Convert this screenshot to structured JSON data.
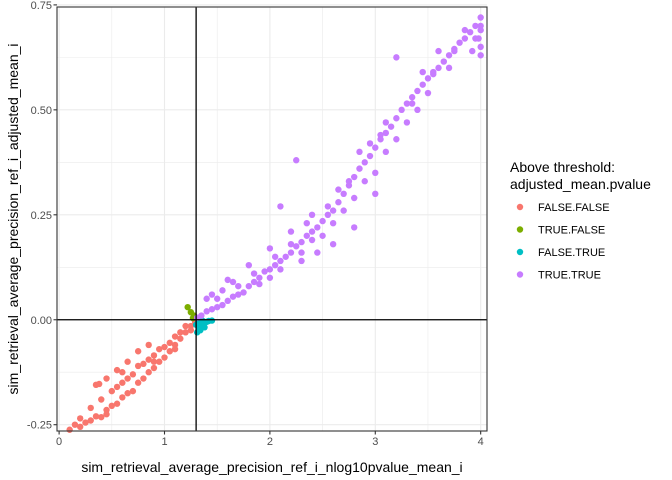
{
  "chart_data": {
    "type": "scatter",
    "xlabel": "sim_retrieval_average_precision_ref_i_nlog10pvalue_mean_i",
    "ylabel": "sim_retrieval_average_precision_ref_i_adjusted_mean_i",
    "xlim": [
      -0.02,
      4.06
    ],
    "ylim": [
      -0.265,
      0.745
    ],
    "x_ticks": [
      0,
      1,
      2,
      3,
      4
    ],
    "x_tick_labels": [
      "0",
      "1",
      "2",
      "3",
      "4"
    ],
    "y_ticks": [
      -0.25,
      0,
      0.25,
      0.5,
      0.75
    ],
    "y_tick_labels": [
      "-0.25",
      "0.00",
      "0.25",
      "0.50",
      "0.75"
    ],
    "grid": true,
    "reference_lines": {
      "vline_x": 1.3,
      "hline_y": 0
    },
    "legend": {
      "title_lines": [
        "Above threshold:",
        "adjusted_mean.pvalue"
      ],
      "placement": "right",
      "entries": [
        {
          "label": "FALSE.FALSE",
          "color": "#F8766D"
        },
        {
          "label": "TRUE.FALSE",
          "color": "#7CAE00"
        },
        {
          "label": "FALSE.TRUE",
          "color": "#00BFC4"
        },
        {
          "label": "TRUE.TRUE",
          "color": "#C77CFF"
        }
      ]
    },
    "series": [
      {
        "name": "FALSE.FALSE",
        "color": "#F8766D",
        "points": [
          [
            0.1,
            -0.262
          ],
          [
            0.15,
            -0.25
          ],
          [
            0.2,
            -0.255
          ],
          [
            0.25,
            -0.245
          ],
          [
            0.3,
            -0.24
          ],
          [
            0.35,
            -0.23
          ],
          [
            0.4,
            -0.232
          ],
          [
            0.45,
            -0.215
          ],
          [
            0.5,
            -0.205
          ],
          [
            0.55,
            -0.2
          ],
          [
            0.6,
            -0.185
          ],
          [
            0.65,
            -0.175
          ],
          [
            0.7,
            -0.17
          ],
          [
            0.75,
            -0.15
          ],
          [
            0.8,
            -0.14
          ],
          [
            0.85,
            -0.125
          ],
          [
            0.9,
            -0.115
          ],
          [
            0.95,
            -0.1
          ],
          [
            1.0,
            -0.09
          ],
          [
            1.05,
            -0.075
          ],
          [
            1.1,
            -0.06
          ],
          [
            1.15,
            -0.045
          ],
          [
            1.2,
            -0.03
          ],
          [
            1.25,
            -0.015
          ],
          [
            1.29,
            -0.005
          ],
          [
            0.5,
            -0.17
          ],
          [
            0.6,
            -0.15
          ],
          [
            0.7,
            -0.13
          ],
          [
            0.8,
            -0.105
          ],
          [
            0.9,
            -0.085
          ],
          [
            1.0,
            -0.065
          ],
          [
            1.1,
            -0.04
          ],
          [
            1.2,
            -0.015
          ],
          [
            0.35,
            -0.155
          ],
          [
            0.45,
            -0.14
          ],
          [
            0.55,
            -0.12
          ],
          [
            0.65,
            -0.1
          ],
          [
            0.75,
            -0.075
          ],
          [
            0.85,
            -0.06
          ],
          [
            0.4,
            -0.19
          ],
          [
            0.3,
            -0.21
          ],
          [
            0.6,
            -0.125
          ],
          [
            0.75,
            -0.11
          ],
          [
            0.95,
            -0.07
          ],
          [
            1.05,
            -0.055
          ],
          [
            1.15,
            -0.03
          ],
          [
            0.38,
            -0.153
          ],
          [
            0.55,
            -0.16
          ],
          [
            0.85,
            -0.095
          ],
          [
            1.25,
            -0.025
          ],
          [
            0.2,
            -0.235
          ],
          [
            0.65,
            -0.14
          ],
          [
            0.9,
            -0.1
          ],
          [
            1.1,
            -0.07
          ],
          [
            0.45,
            -0.225
          ]
        ]
      },
      {
        "name": "TRUE.FALSE",
        "color": "#7CAE00",
        "points": [
          [
            1.22,
            0.03
          ],
          [
            1.25,
            0.018
          ],
          [
            1.28,
            0.01
          ],
          [
            1.27,
            0.004
          ]
        ]
      },
      {
        "name": "FALSE.TRUE",
        "color": "#00BFC4",
        "points": [
          [
            1.31,
            -0.03
          ],
          [
            1.33,
            -0.02
          ],
          [
            1.35,
            -0.015
          ],
          [
            1.37,
            -0.01
          ],
          [
            1.4,
            -0.005
          ],
          [
            1.42,
            -0.003
          ],
          [
            1.45,
            -0.002
          ],
          [
            1.34,
            -0.025
          ],
          [
            1.38,
            -0.018
          ],
          [
            1.32,
            -0.005
          ],
          [
            1.36,
            -0.002
          ],
          [
            1.3,
            -0.012
          ]
        ]
      },
      {
        "name": "TRUE.TRUE",
        "color": "#C77CFF",
        "points": [
          [
            1.31,
            0.005
          ],
          [
            1.35,
            0.01
          ],
          [
            1.4,
            0.02
          ],
          [
            1.45,
            0.025
          ],
          [
            1.5,
            0.03
          ],
          [
            1.55,
            0.035
          ],
          [
            1.6,
            0.045
          ],
          [
            1.65,
            0.055
          ],
          [
            1.7,
            0.06
          ],
          [
            1.75,
            0.065
          ],
          [
            1.8,
            0.08
          ],
          [
            1.85,
            0.09
          ],
          [
            1.9,
            0.1
          ],
          [
            1.95,
            0.115
          ],
          [
            2.0,
            0.12
          ],
          [
            2.05,
            0.13
          ],
          [
            2.1,
            0.14
          ],
          [
            2.15,
            0.15
          ],
          [
            2.2,
            0.16
          ],
          [
            2.25,
            0.175
          ],
          [
            2.3,
            0.185
          ],
          [
            2.35,
            0.2
          ],
          [
            2.4,
            0.21
          ],
          [
            2.45,
            0.22
          ],
          [
            2.5,
            0.235
          ],
          [
            2.55,
            0.25
          ],
          [
            2.6,
            0.26
          ],
          [
            2.65,
            0.28
          ],
          [
            2.7,
            0.3
          ],
          [
            2.75,
            0.32
          ],
          [
            2.8,
            0.34
          ],
          [
            2.85,
            0.36
          ],
          [
            2.9,
            0.375
          ],
          [
            2.95,
            0.39
          ],
          [
            3.0,
            0.41
          ],
          [
            3.05,
            0.43
          ],
          [
            3.1,
            0.445
          ],
          [
            3.15,
            0.46
          ],
          [
            3.2,
            0.48
          ],
          [
            3.25,
            0.5
          ],
          [
            3.3,
            0.515
          ],
          [
            3.35,
            0.53
          ],
          [
            3.4,
            0.545
          ],
          [
            3.45,
            0.56
          ],
          [
            3.5,
            0.575
          ],
          [
            3.55,
            0.59
          ],
          [
            3.6,
            0.6
          ],
          [
            3.65,
            0.615
          ],
          [
            3.7,
            0.63
          ],
          [
            3.75,
            0.645
          ],
          [
            3.8,
            0.66
          ],
          [
            3.85,
            0.67
          ],
          [
            3.9,
            0.685
          ],
          [
            3.95,
            0.7
          ],
          [
            4.0,
            0.72
          ],
          [
            4.0,
            0.69
          ],
          [
            4.0,
            0.65
          ],
          [
            4.0,
            0.63
          ],
          [
            3.98,
            0.67
          ],
          [
            3.92,
            0.64
          ],
          [
            1.5,
            0.05
          ],
          [
            1.7,
            0.08
          ],
          [
            1.9,
            0.085
          ],
          [
            2.1,
            0.12
          ],
          [
            2.3,
            0.16
          ],
          [
            2.5,
            0.2
          ],
          [
            2.7,
            0.26
          ],
          [
            2.9,
            0.33
          ],
          [
            3.1,
            0.4
          ],
          [
            3.3,
            0.47
          ],
          [
            3.5,
            0.54
          ],
          [
            3.7,
            0.6
          ],
          [
            2.0,
            0.1
          ],
          [
            2.2,
            0.18
          ],
          [
            2.4,
            0.19
          ],
          [
            2.6,
            0.23
          ],
          [
            2.8,
            0.29
          ],
          [
            3.0,
            0.35
          ],
          [
            3.2,
            0.43
          ],
          [
            3.4,
            0.5
          ],
          [
            1.45,
            0.06
          ],
          [
            1.6,
            0.095
          ],
          [
            1.8,
            0.13
          ],
          [
            2.0,
            0.17
          ],
          [
            2.2,
            0.21
          ],
          [
            2.4,
            0.25
          ],
          [
            2.65,
            0.31
          ],
          [
            2.85,
            0.4
          ],
          [
            3.1,
            0.47
          ],
          [
            3.45,
            0.59
          ],
          [
            3.6,
            0.64
          ],
          [
            3.2,
            0.625
          ],
          [
            2.25,
            0.38
          ],
          [
            2.1,
            0.27
          ],
          [
            2.95,
            0.42
          ],
          [
            2.6,
            0.18
          ],
          [
            2.8,
            0.22
          ],
          [
            3.0,
            0.3
          ],
          [
            2.3,
            0.14
          ],
          [
            2.45,
            0.16
          ],
          [
            1.4,
            0.05
          ],
          [
            1.55,
            0.07
          ],
          [
            1.65,
            0.09
          ],
          [
            1.85,
            0.11
          ],
          [
            2.05,
            0.15
          ],
          [
            2.35,
            0.23
          ],
          [
            2.55,
            0.27
          ],
          [
            2.75,
            0.33
          ],
          [
            3.05,
            0.44
          ],
          [
            3.35,
            0.515
          ],
          [
            3.55,
            0.585
          ],
          [
            3.75,
            0.64
          ],
          [
            3.85,
            0.69
          ],
          [
            3.95,
            0.67
          ],
          [
            4.0,
            0.7
          ]
        ]
      }
    ]
  }
}
